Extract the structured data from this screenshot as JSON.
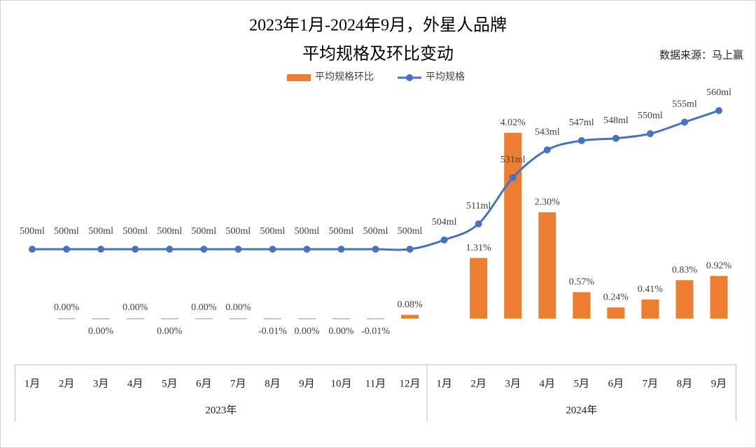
{
  "chart_data": {
    "type": "bar-line",
    "title": "2023年1月-2024年9月，外星人品牌",
    "subtitle": "平均规格及环比变动",
    "source": "数据来源：马上赢",
    "categories": [
      "1月",
      "2月",
      "3月",
      "4月",
      "5月",
      "6月",
      "7月",
      "8月",
      "9月",
      "10月",
      "11月",
      "12月",
      "1月",
      "2月",
      "3月",
      "4月",
      "5月",
      "6月",
      "7月",
      "8月",
      "9月"
    ],
    "category_groups": [
      {
        "name": "2023年",
        "size": 12
      },
      {
        "name": "2024年",
        "size": 9
      }
    ],
    "ylim": [
      -1,
      5
    ],
    "y2lim": [
      450,
      570
    ],
    "series": [
      {
        "name": "平均规格环比",
        "type": "bar",
        "color": "#ED7D31",
        "values": [
          null,
          0.001,
          -0.001,
          0.001,
          -0.001,
          0.001,
          0.001,
          -0.01,
          -0.001,
          -0.001,
          -0.01,
          0.08,
          null,
          1.31,
          4.02,
          2.3,
          0.57,
          0.24,
          0.41,
          0.83,
          0.92
        ],
        "value_labels": [
          null,
          "0.00%",
          "0.00%",
          "0.00%",
          "0.00%",
          "0.00%",
          "0.00%",
          "-0.01%",
          "0.00%",
          "0.00%",
          "-0.01%",
          "0.08%",
          null,
          "1.31%",
          "4.02%",
          "2.30%",
          "0.57%",
          "0.24%",
          "0.41%",
          "0.83%",
          "0.92%"
        ]
      },
      {
        "name": "平均规格",
        "type": "line",
        "axis": "y2",
        "color": "#4472C4",
        "values": [
          500,
          500,
          500,
          500,
          500,
          500,
          500,
          500,
          500,
          500,
          500,
          500,
          504,
          511,
          531,
          543,
          547,
          548,
          550,
          555,
          560
        ],
        "value_labels": [
          "500ml",
          "500ml",
          "500ml",
          "500ml",
          "500ml",
          "500ml",
          "500ml",
          "500ml",
          "500ml",
          "500ml",
          "500ml",
          "500ml",
          "504ml",
          "511ml",
          "531ml",
          "543ml",
          "547ml",
          "548ml",
          "550ml",
          "555ml",
          "560ml"
        ]
      }
    ]
  }
}
